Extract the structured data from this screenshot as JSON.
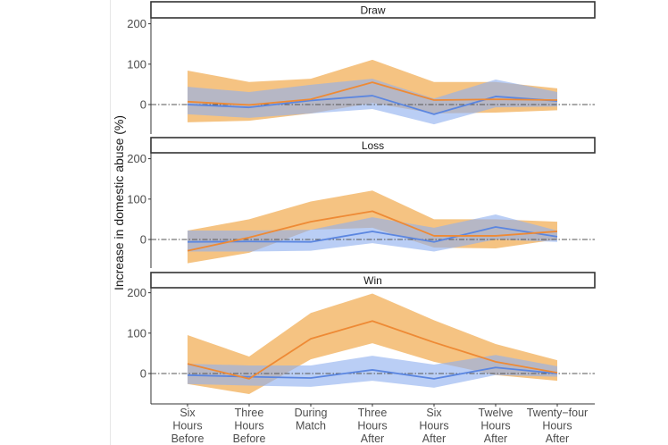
{
  "chart_data": {
    "type": "line",
    "title": "",
    "ylabel": "Increase in domestic abuse (%)",
    "xlabel": "",
    "ylim": [
      -75,
      210
    ],
    "yticks": [
      0,
      100,
      200
    ],
    "grid": false,
    "reference_line": {
      "y": 0,
      "style": "dot-dash"
    },
    "categories": [
      [
        "Six",
        "Hours",
        "Before"
      ],
      [
        "Three",
        "Hours",
        "Before"
      ],
      [
        "During",
        "Match"
      ],
      [
        "Three",
        "Hours",
        "After"
      ],
      [
        "Six",
        "Hours",
        "After"
      ],
      [
        "Twelve",
        "Hours",
        "After"
      ],
      [
        "Twenty−four",
        "Hours",
        "After"
      ]
    ],
    "colors": {
      "orange_line": "#ee8a35",
      "orange_band": "#f2b25f",
      "blue_line": "#5b86e0",
      "blue_band": "#8fb0ef"
    },
    "panels": [
      {
        "title": "Draw",
        "series": [
          {
            "name": "orange",
            "values": [
              7,
              -1,
              13,
              55,
              11,
              13,
              11
            ],
            "lower": [
              -44,
              -40,
              -22,
              4,
              -22,
              -20,
              -14
            ],
            "upper": [
              84,
              56,
              64,
              111,
              56,
              56,
              40
            ]
          },
          {
            "name": "blue",
            "values": [
              0,
              -7,
              10,
              22,
              -24,
              20,
              9
            ],
            "lower": [
              -24,
              -33,
              -22,
              -11,
              -49,
              -7,
              -5
            ],
            "upper": [
              44,
              31,
              49,
              64,
              15,
              62,
              31
            ]
          }
        ]
      },
      {
        "title": "Loss",
        "series": [
          {
            "name": "orange",
            "values": [
              -28,
              5,
              44,
              70,
              9,
              9,
              20
            ],
            "lower": [
              -59,
              -33,
              24,
              29,
              -20,
              -22,
              0
            ],
            "upper": [
              22,
              50,
              94,
              121,
              50,
              50,
              44
            ]
          },
          {
            "name": "blue",
            "values": [
              -6,
              -5,
              -6,
              20,
              -6,
              31,
              7
            ],
            "lower": [
              -30,
              -30,
              -28,
              -9,
              -30,
              0,
              -6
            ],
            "upper": [
              22,
              22,
              24,
              55,
              29,
              62,
              22
            ]
          }
        ]
      },
      {
        "title": "Win",
        "series": [
          {
            "name": "orange",
            "values": [
              24,
              -13,
              86,
              130,
              77,
              29,
              2
            ],
            "lower": [
              -26,
              -51,
              35,
              75,
              29,
              -4,
              -18
            ],
            "upper": [
              95,
              42,
              150,
              198,
              132,
              73,
              33
            ]
          },
          {
            "name": "blue",
            "values": [
              -4,
              -8,
              -11,
              9,
              -13,
              15,
              0
            ],
            "lower": [
              -26,
              -30,
              -33,
              -18,
              -35,
              -4,
              -8
            ],
            "upper": [
              24,
              20,
              20,
              44,
              22,
              46,
              18
            ]
          }
        ]
      }
    ]
  }
}
